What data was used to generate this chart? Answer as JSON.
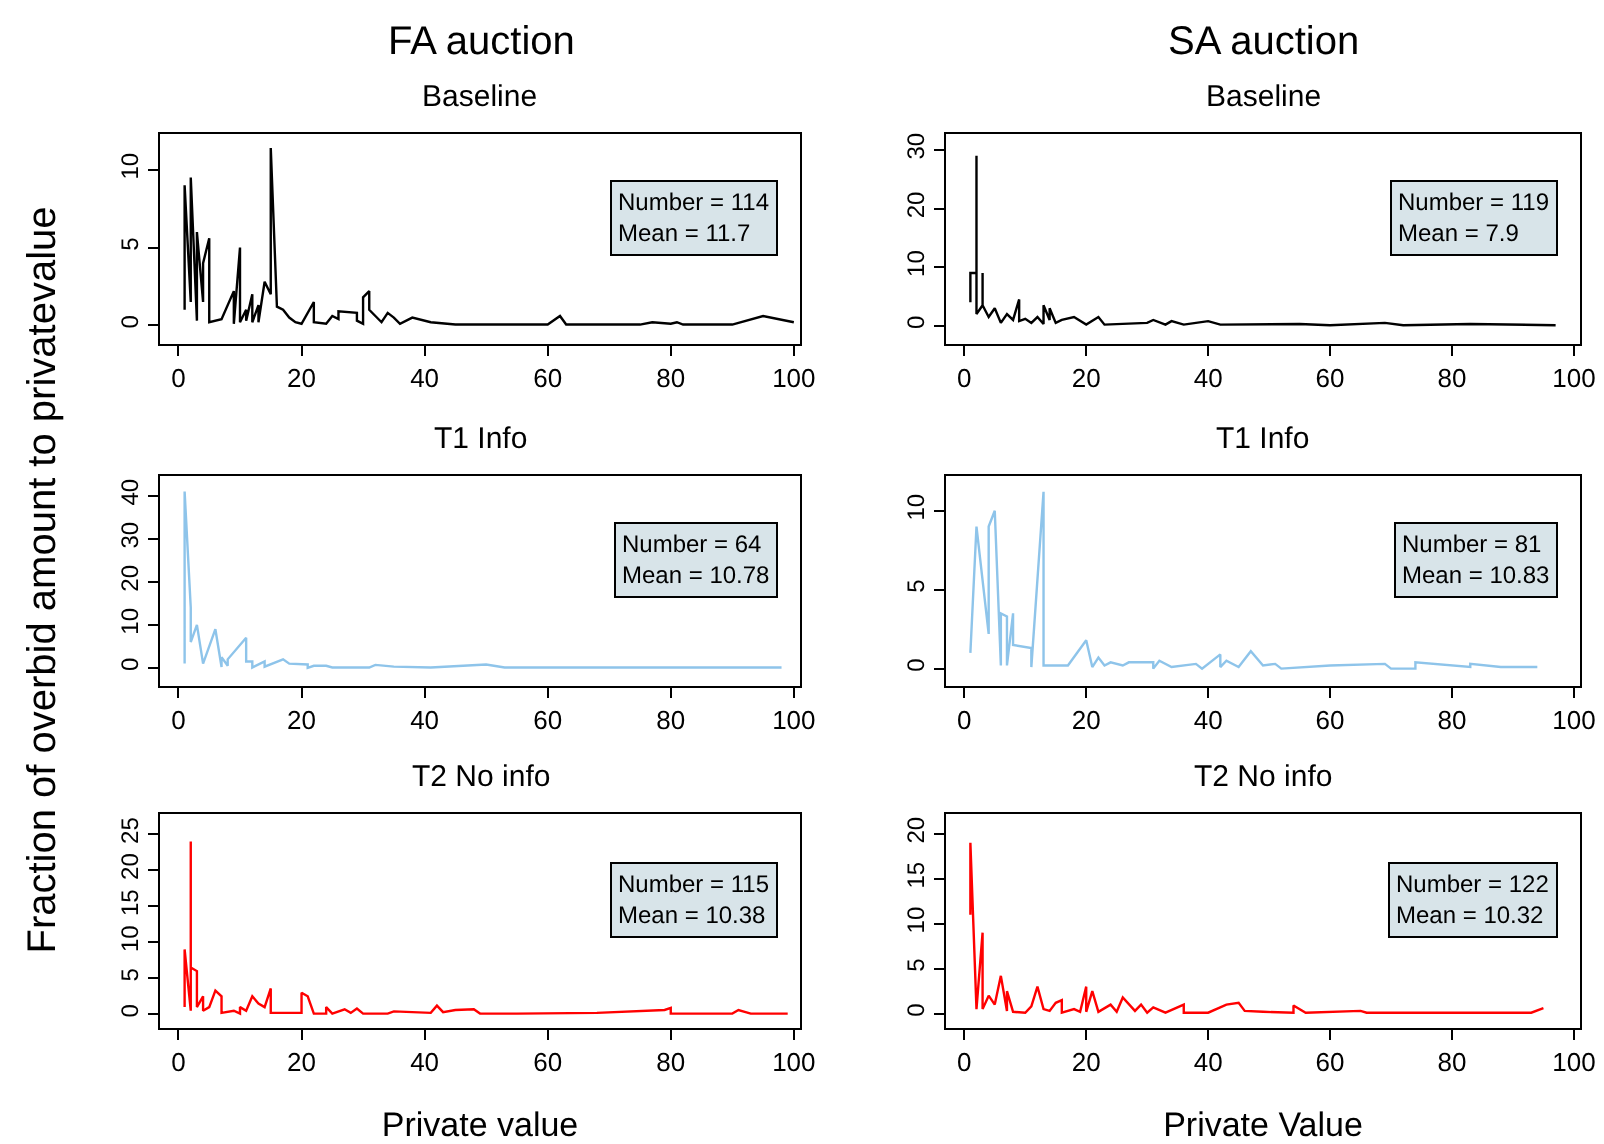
{
  "chart_data": [
    {
      "type": "line",
      "title": "FA auction",
      "subtitle": "Baseline",
      "annotations": [
        "Number = 114",
        "Mean = 11.7"
      ],
      "xlim": [
        -3,
        101
      ],
      "xticks": [
        0,
        20,
        40,
        60,
        80,
        100
      ],
      "ylim": [
        -1.2,
        12.3
      ],
      "yticks": [
        0,
        5,
        10
      ],
      "marker": "none",
      "series": [
        {
          "color": "#000000",
          "x": [
            1,
            1,
            2,
            2,
            3,
            3,
            4,
            4,
            5,
            5,
            7,
            9,
            9,
            10,
            10,
            11,
            11,
            12,
            12,
            13,
            13,
            14,
            15,
            15,
            16,
            17,
            18,
            19,
            20,
            22,
            22,
            24,
            25,
            26,
            26,
            29,
            29,
            30,
            30,
            31,
            31,
            33,
            34,
            35,
            36,
            38,
            41,
            45,
            50,
            60,
            62,
            63,
            75,
            77,
            80,
            81,
            82,
            90,
            95,
            100
          ],
          "values": [
            1,
            9,
            1.5,
            9.5,
            0.3,
            6,
            1.5,
            4,
            5.6,
            0.2,
            0.4,
            2.2,
            0.1,
            5,
            0.2,
            1,
            0.3,
            2,
            0.2,
            1.3,
            0.2,
            2.8,
            2,
            11.4,
            1.2,
            1,
            0.5,
            0.2,
            0.1,
            1.5,
            0.2,
            0.1,
            0.6,
            0.4,
            0.9,
            0.8,
            0.3,
            0.1,
            1.8,
            2.2,
            1,
            0.2,
            0.8,
            0.5,
            0.1,
            0.5,
            0.2,
            0.05,
            0.05,
            0.05,
            0.6,
            0.05,
            0.05,
            0.2,
            0.1,
            0.2,
            0.05,
            0.05,
            0.6,
            0.2
          ]
        }
      ]
    },
    {
      "type": "line",
      "title": "SA auction",
      "subtitle": "Baseline",
      "annotations": [
        "Number = 119",
        "Mean = 7.9"
      ],
      "xlim": [
        -3,
        101
      ],
      "xticks": [
        0,
        20,
        40,
        60,
        80,
        100
      ],
      "ylim": [
        -3.1,
        32.7
      ],
      "yticks": [
        0,
        10,
        20,
        30
      ],
      "marker": "none",
      "series": [
        {
          "color": "#000000",
          "x": [
            1,
            1,
            2,
            2,
            2,
            3,
            3,
            3,
            4,
            5,
            6,
            7,
            8,
            9,
            9,
            10,
            11,
            12,
            13,
            13,
            14,
            14,
            15,
            16,
            18,
            20,
            22,
            23,
            30,
            31,
            33,
            34,
            36,
            40,
            42,
            55,
            60,
            69,
            72,
            83,
            97
          ],
          "values": [
            4,
            9,
            9,
            29,
            2,
            3.5,
            9,
            3.5,
            1.5,
            3,
            0.5,
            2,
            1,
            4.5,
            0.8,
            1.2,
            0.5,
            1.5,
            0.3,
            3.5,
            1,
            3,
            0.5,
            1,
            1.5,
            0.2,
            1.5,
            0.2,
            0.5,
            1,
            0.2,
            0.8,
            0.2,
            0.8,
            0.2,
            0.3,
            0.1,
            0.5,
            0.1,
            0.3,
            0.1
          ]
        }
      ]
    },
    {
      "type": "line",
      "title": "T1 Info",
      "ylabel": "Fraction of overbid amount to privatevalue",
      "annotations": [
        "Number = 64",
        "Mean = 10.78"
      ],
      "xlim": [
        -3,
        101
      ],
      "xticks": [
        0,
        20,
        40,
        60,
        80,
        100
      ],
      "ylim": [
        -4.2,
        44.6
      ],
      "yticks": [
        0,
        10,
        20,
        30,
        40
      ],
      "marker": "none",
      "series": [
        {
          "color": "#8ec4ea",
          "x": [
            1,
            1,
            2,
            2,
            3,
            4,
            6,
            7,
            7,
            8,
            8,
            11,
            11,
            12,
            12,
            14,
            14,
            17,
            18,
            21,
            21,
            22,
            24,
            25,
            31,
            32,
            35,
            41,
            50,
            53,
            70,
            98
          ],
          "values": [
            1,
            41,
            14,
            6,
            10,
            1,
            9,
            0.2,
            2.5,
            0.5,
            2,
            7,
            1.5,
            1.5,
            0.1,
            1.5,
            0.3,
            2,
            1,
            0.8,
            0,
            0.5,
            0.5,
            0.1,
            0.1,
            0.7,
            0.3,
            0.1,
            0.8,
            0.1,
            0.1,
            0.1
          ]
        }
      ]
    },
    {
      "type": "line",
      "title": "T1 Info",
      "annotations": [
        "Number = 81",
        "Mean = 10.83"
      ],
      "xlim": [
        -3,
        101
      ],
      "xticks": [
        0,
        20,
        40,
        60,
        80,
        100
      ],
      "ylim": [
        -1.1,
        12.2
      ],
      "yticks": [
        0,
        5,
        10
      ],
      "marker": "none",
      "series": [
        {
          "color": "#8ec4ea",
          "x": [
            1,
            2,
            4,
            4,
            5,
            6,
            6,
            7,
            7,
            8,
            8,
            11,
            11,
            13,
            13,
            17,
            20,
            21,
            22,
            23,
            24,
            26,
            27,
            31,
            31,
            32,
            34,
            38,
            39,
            42,
            42,
            43,
            45,
            47,
            49,
            51,
            52,
            60,
            69,
            70,
            74,
            74,
            83,
            83,
            88,
            94
          ],
          "values": [
            1,
            9,
            2.2,
            9,
            10,
            0.2,
            3.5,
            3.3,
            0.2,
            3.5,
            1.5,
            1.3,
            0.1,
            11.2,
            0.2,
            0.2,
            1.8,
            0.1,
            0.7,
            0.2,
            0.4,
            0.2,
            0.4,
            0.4,
            0,
            0.5,
            0.1,
            0.3,
            0,
            0.9,
            0.1,
            0.5,
            0.1,
            1.1,
            0.2,
            0.3,
            0,
            0.2,
            0.3,
            0,
            0,
            0.4,
            0.1,
            0.3,
            0.1,
            0.1
          ]
        }
      ]
    },
    {
      "type": "line",
      "title": "T2 No info",
      "xlabel": "Private value",
      "annotations": [
        "Number = 115",
        "Mean = 10.38"
      ],
      "xlim": [
        -3,
        101
      ],
      "xticks": [
        0,
        20,
        40,
        60,
        80,
        100
      ],
      "ylim": [
        -1.9,
        27.8
      ],
      "yticks": [
        0,
        5,
        10,
        15,
        20,
        25
      ],
      "marker": "none",
      "series": [
        {
          "color": "#ff0000",
          "x": [
            1,
            1,
            2,
            2,
            2,
            3,
            3,
            4,
            4,
            5,
            6,
            7,
            7,
            9,
            10,
            10,
            11,
            12,
            13,
            14,
            15,
            15,
            20,
            20,
            21,
            22,
            24,
            24,
            25,
            27,
            28,
            29,
            30,
            34,
            35,
            41,
            42,
            43,
            45,
            48,
            49,
            55,
            68,
            79,
            80,
            80,
            90,
            91,
            93,
            99
          ],
          "values": [
            1,
            9,
            0.5,
            24,
            6.5,
            6,
            1,
            2.5,
            0.5,
            1,
            3.3,
            2.5,
            0.2,
            0.5,
            0.1,
            1,
            0.5,
            2.5,
            1.5,
            1,
            3.6,
            0.2,
            0.2,
            3,
            2.5,
            0.1,
            0.1,
            1,
            0.1,
            0.7,
            0.2,
            0.8,
            0.1,
            0.1,
            0.4,
            0.2,
            1.2,
            0.3,
            0.6,
            0.7,
            0.1,
            0.1,
            0.2,
            0.6,
            0.9,
            0.1,
            0.1,
            0.6,
            0.1,
            0.1
          ]
        }
      ]
    },
    {
      "type": "line",
      "title": "T2 No info",
      "xlabel": "Private Value",
      "annotations": [
        "Number = 122",
        "Mean = 10.32"
      ],
      "xlim": [
        -3,
        101
      ],
      "xticks": [
        0,
        20,
        40,
        60,
        80,
        100
      ],
      "ylim": [
        -1.6,
        22.2
      ],
      "yticks": [
        0,
        5,
        10,
        15,
        20
      ],
      "marker": "none",
      "series": [
        {
          "color": "#ff0000",
          "x": [
            1,
            1,
            2,
            3,
            3,
            4,
            5,
            6,
            7,
            7,
            8,
            10,
            11,
            12,
            13,
            14,
            15,
            16,
            16,
            18,
            19,
            20,
            20,
            21,
            22,
            24,
            25,
            26,
            28,
            29,
            30,
            31,
            33,
            36,
            36,
            40,
            43,
            45,
            46,
            49,
            54,
            54,
            56,
            65,
            66,
            80,
            93,
            95
          ],
          "values": [
            11,
            19,
            0.5,
            9,
            0.5,
            2,
            1,
            4.2,
            0.3,
            2.5,
            0.2,
            0.1,
            0.8,
            3,
            0.5,
            0.3,
            1.2,
            1.5,
            0.1,
            0.5,
            0.2,
            3,
            0.2,
            2.5,
            0.2,
            1,
            0.2,
            1.8,
            0.3,
            1,
            0.1,
            0.7,
            0.1,
            1,
            0.1,
            0.1,
            1,
            1.2,
            0.3,
            0.2,
            0.1,
            0.9,
            0.1,
            0.3,
            0.1,
            0.1,
            0.1,
            0.6
          ]
        }
      ]
    }
  ]
}
